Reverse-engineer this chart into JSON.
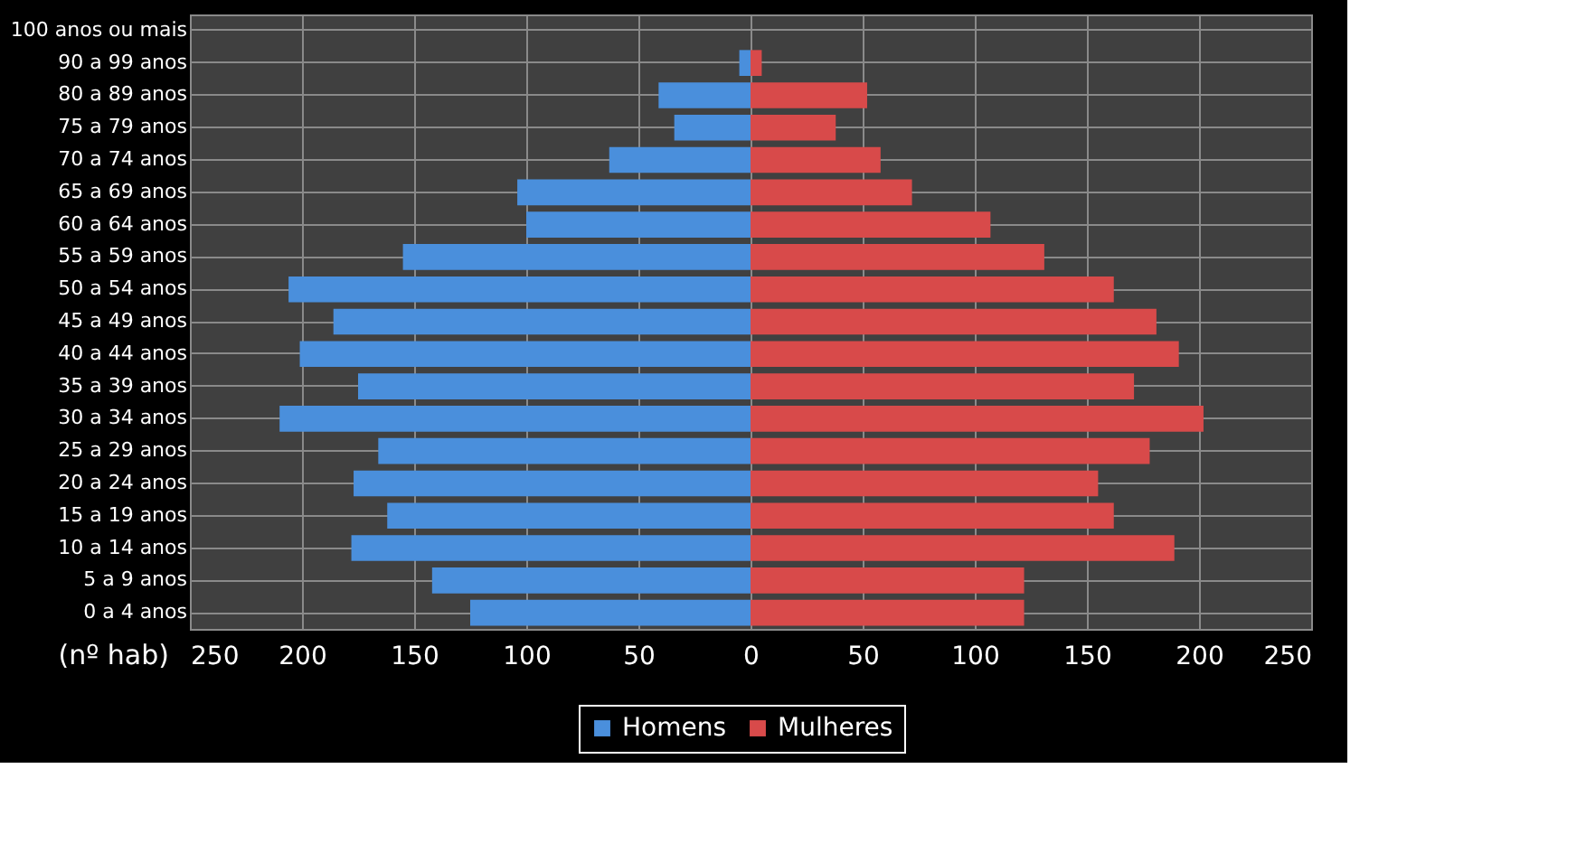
{
  "chart_data": {
    "type": "bar",
    "orientation": "horizontal",
    "xlabel": "(nº hab)",
    "categories": [
      "100 anos ou mais",
      "90 a 99 anos",
      "80 a 89 anos",
      "75 a 79 anos",
      "70 a 74 anos",
      "65 a 69 anos",
      "60 a 64 anos",
      "55 a 59 anos",
      "50 a 54 anos",
      "45 a 49 anos",
      "40 a 44 anos",
      "35 a 39 anos",
      "30 a 34 anos",
      "25 a 29 anos",
      "20 a 24 anos",
      "15 a 19 anos",
      "10 a 14 anos",
      "5 a 9 anos",
      "0 a 4 anos"
    ],
    "series": [
      {
        "name": "Homens",
        "color": "#4a8fdc",
        "values": [
          0,
          -5,
          -41,
          -34,
          -63,
          -104,
          -100,
          -155,
          -206,
          -186,
          -201,
          -175,
          -210,
          -166,
          -177,
          -162,
          -178,
          -142,
          -125
        ]
      },
      {
        "name": "Mulheres",
        "color": "#d84a4a",
        "values": [
          0,
          5,
          52,
          38,
          58,
          72,
          107,
          131,
          162,
          181,
          191,
          171,
          202,
          178,
          155,
          162,
          189,
          122,
          122
        ]
      }
    ],
    "xlim": [
      -250,
      250
    ],
    "xticks": [
      {
        "value": -250,
        "label": "250"
      },
      {
        "value": -200,
        "label": "200"
      },
      {
        "value": -150,
        "label": "150"
      },
      {
        "value": -100,
        "label": "100"
      },
      {
        "value": -50,
        "label": "50"
      },
      0,
      50,
      100,
      150,
      200,
      250
    ],
    "grid": true,
    "legend": "bottom",
    "stacked": true
  }
}
